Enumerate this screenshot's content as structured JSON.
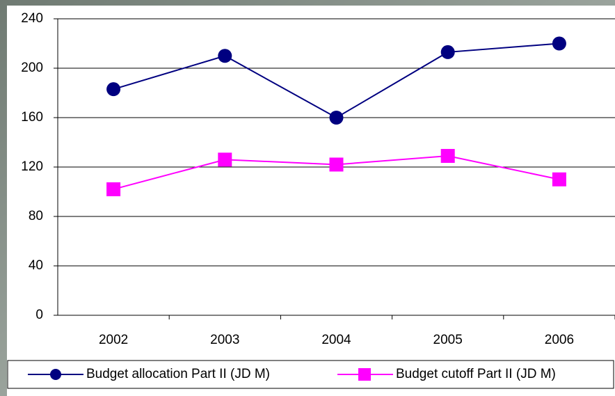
{
  "chart_data": {
    "type": "line",
    "categories": [
      "2002",
      "2003",
      "2004",
      "2005",
      "2006"
    ],
    "series": [
      {
        "name": "Budget allocation Part II (JD M)",
        "color": "#000080",
        "marker": "circle",
        "values": [
          183,
          210,
          160,
          213,
          220
        ]
      },
      {
        "name": "Budget cutoff Part II (JD M)",
        "color": "#ff00ff",
        "marker": "square",
        "values": [
          102,
          126,
          122,
          129,
          110
        ]
      }
    ],
    "ylim": [
      0,
      240
    ],
    "yticks": [
      0,
      40,
      80,
      120,
      160,
      200,
      240
    ],
    "grid": true,
    "legend": "bottom"
  }
}
